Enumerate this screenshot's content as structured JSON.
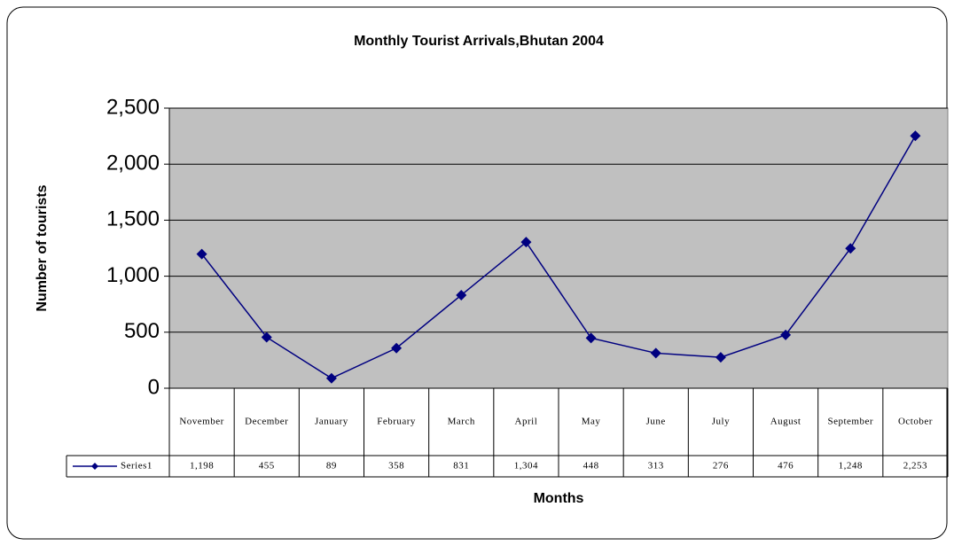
{
  "chart_data": {
    "type": "line",
    "title": "Monthly Tourist Arrivals,Bhutan 2004",
    "x_label": "Months",
    "y_label": "Number of tourists",
    "categories": [
      "November",
      "December",
      "January",
      "February",
      "March",
      "April",
      "May",
      "June",
      "July",
      "August",
      "September",
      "October"
    ],
    "series": [
      {
        "name": "Series1",
        "color": "#000080",
        "values": [
          1198,
          455,
          89,
          358,
          831,
          1304,
          448,
          313,
          276,
          476,
          1248,
          2253
        ],
        "value_labels": [
          "1,198",
          "455",
          "89",
          "358",
          "831",
          "1,304",
          "448",
          "313",
          "276",
          "476",
          "1,248",
          "2,253"
        ]
      }
    ],
    "ylim": [
      0,
      2500
    ],
    "yticks": [
      0,
      500,
      {
        "value": 1000,
        "label": "1,000"
      },
      {
        "value": 1500,
        "label": "1,500"
      },
      {
        "value": 2000,
        "label": "2,000"
      },
      {
        "value": 2500,
        "label": "2,500"
      }
    ],
    "grid": true,
    "plot_background": "#c0c0c0"
  }
}
